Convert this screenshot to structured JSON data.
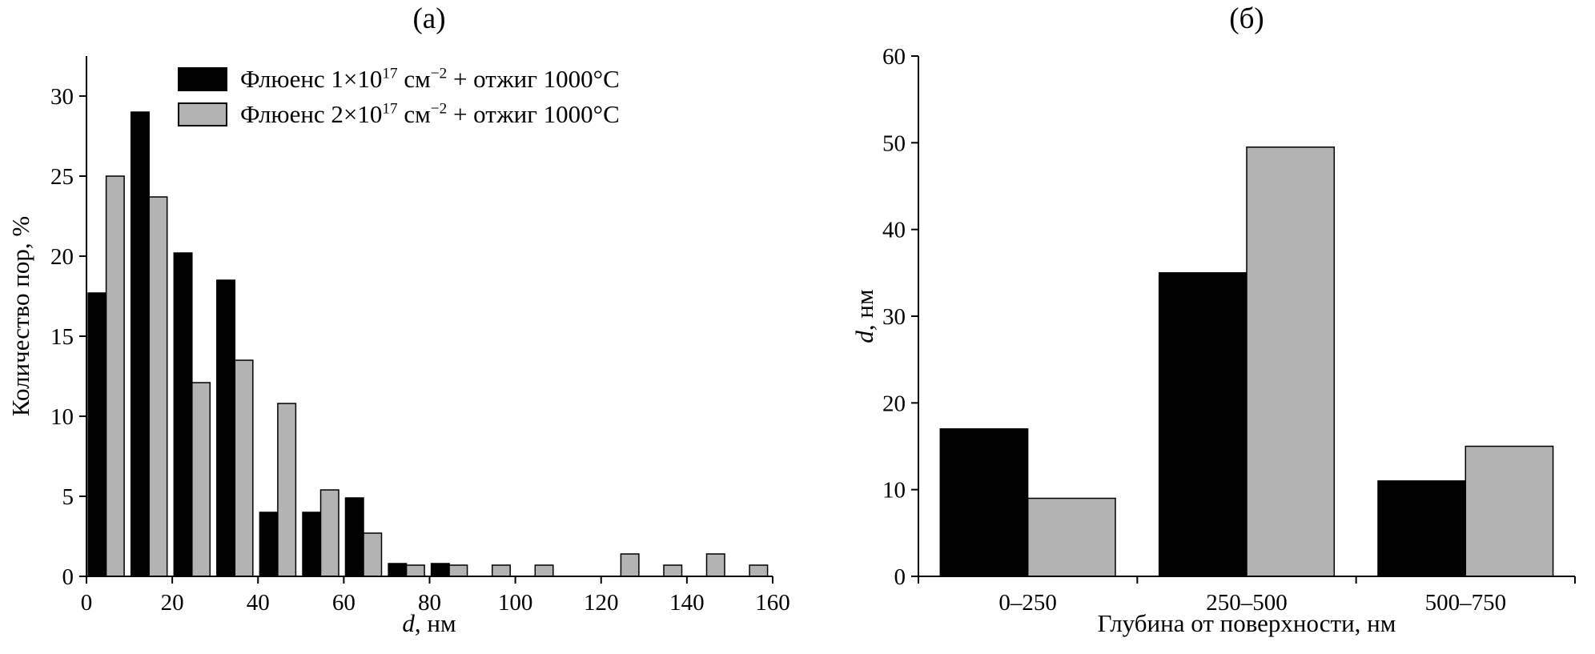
{
  "figure": {
    "panel_a_title": "(а)",
    "panel_b_title": "(б)"
  },
  "chart_data": [
    {
      "type": "bar",
      "title": "(а)",
      "ylabel": "Количество пор, %",
      "xlabel_italic": "d",
      "xlabel_rest": ", нм",
      "xlim": [
        0,
        160
      ],
      "ylim": [
        0,
        32.5
      ],
      "xticks": [
        0,
        20,
        40,
        60,
        80,
        100,
        120,
        140,
        160
      ],
      "yticks": [
        0,
        5,
        10,
        15,
        20,
        25,
        30
      ],
      "bin_width": 10,
      "grid": false,
      "legend_position": "top-inside",
      "series": [
        {
          "name": "Флюенс 1×10¹⁷ см⁻² + отжиг 1000°C",
          "color": "#000000",
          "values": [
            17.7,
            29.0,
            20.2,
            18.5,
            4.0,
            4.0,
            4.9,
            0.8,
            0.8,
            0,
            0,
            0,
            0,
            0,
            0,
            0
          ]
        },
        {
          "name": "Флюенс 2×10¹⁷ см⁻² + отжиг 1000°C",
          "color": "#b3b3b3",
          "values": [
            25.0,
            23.7,
            12.1,
            13.5,
            10.8,
            5.4,
            2.7,
            0.7,
            0.7,
            0.7,
            0.7,
            0,
            1.4,
            0.7,
            1.4,
            0.7
          ]
        }
      ],
      "legend": [
        {
          "pre": "Флюенс 1×10",
          "exp": "17",
          "mid": " см",
          "exp2": "−2",
          "post": " + отжиг 1000°C",
          "color": "#000000"
        },
        {
          "pre": "Флюенс 2×10",
          "exp": "17",
          "mid": " см",
          "exp2": "−2",
          "post": " + отжиг 1000°C",
          "color": "#b3b3b3"
        }
      ]
    },
    {
      "type": "bar",
      "title": "(б)",
      "categories": [
        "0–250",
        "250–500",
        "500–750"
      ],
      "xlabel": "Глубина от поверхности, нм",
      "ylabel_italic": "d",
      "ylabel_rest": ", нм",
      "ylim": [
        0,
        60
      ],
      "yticks": [
        0,
        10,
        20,
        30,
        40,
        50,
        60
      ],
      "grid": false,
      "series": [
        {
          "name": "Флюенс 1×10¹⁷ см⁻² + отжиг 1000°C",
          "color": "#000000",
          "values": [
            17,
            35,
            11
          ]
        },
        {
          "name": "Флюенс 2×10¹⁷ см⁻² + отжиг 1000°C",
          "color": "#b3b3b3",
          "values": [
            9,
            49.5,
            15
          ]
        }
      ]
    }
  ]
}
